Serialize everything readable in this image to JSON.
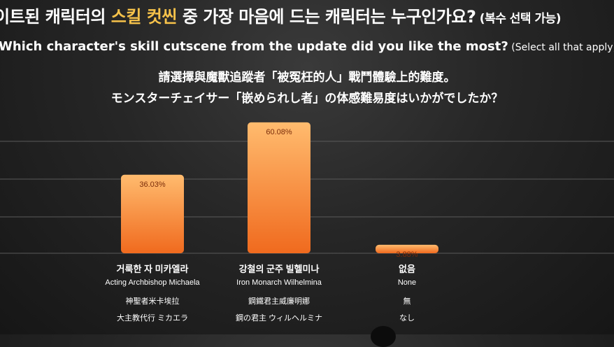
{
  "title": {
    "ko_prefix": "이트된 캐릭터의 ",
    "ko_highlight": "스킬 컷씬",
    "ko_suffix": " 중 가장 마음에 드는 캐릭터는 누구인가요?",
    "ko_note": " (복수 선택 가능)",
    "en_main": "Which character's skill cutscene from the update did you like the most?",
    "en_note": " (Select all that apply)",
    "zh": "請選擇與魔獸追蹤者「被冤枉的人」戰鬥體驗上的難度。",
    "ja": "モンスターチェイサー「嵌められし者」の体感難易度はいかがでしたか？"
  },
  "chart_data": {
    "type": "bar",
    "categories": [
      {
        "ko": "거룩한 자 미카엘라",
        "en": "Acting Archbishop Michaela",
        "zh": "神聖者米卡埃拉",
        "ja": "大主教代行 ミカエラ"
      },
      {
        "ko": "강철의 군주 빌헬미나",
        "en": "Iron Monarch Wilhelmina",
        "zh": "鋼鐵君主威廉明娜",
        "ja": "鋼の君主 ウィルヘルミナ"
      },
      {
        "ko": "없음",
        "en": "None",
        "zh": "無",
        "ja": "なし"
      }
    ],
    "values": [
      36.03,
      60.08,
      3.88
    ],
    "value_labels": [
      "36.03%",
      "60.08%",
      "3.88%"
    ],
    "ylim": [
      0,
      70
    ],
    "grid": true,
    "bar_color": "#f58a3a"
  },
  "colors": {
    "background": "#262626",
    "highlight": "#f6c24a",
    "bar_top": "#ffbb6e",
    "bar_bottom": "#f06a1e"
  },
  "icons": {
    "presenter": "presenter-silhouette-icon"
  }
}
